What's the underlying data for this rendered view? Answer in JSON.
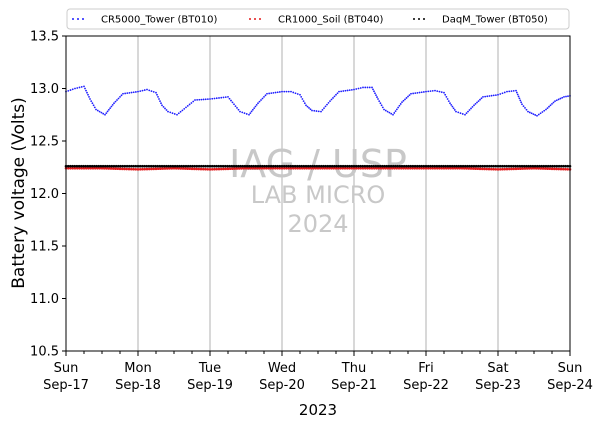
{
  "chart_data": {
    "type": "scatter",
    "xlabel": "2023",
    "ylabel": "Battery voltage (Volts)",
    "ylim": [
      10.5,
      13.5
    ],
    "xlim": [
      "2023-09-17",
      "2023-09-24"
    ],
    "y_ticks": [
      "10.5",
      "11.0",
      "11.5",
      "12.0",
      "12.5",
      "13.0",
      "13.5"
    ],
    "x_ticks": [
      {
        "day": "Sun",
        "date": "Sep-17"
      },
      {
        "day": "Mon",
        "date": "Sep-18"
      },
      {
        "day": "Tue",
        "date": "Sep-19"
      },
      {
        "day": "Wed",
        "date": "Sep-20"
      },
      {
        "day": "Thu",
        "date": "Sep-21"
      },
      {
        "day": "Fri",
        "date": "Sep-22"
      },
      {
        "day": "Sat",
        "date": "Sep-23"
      },
      {
        "day": "Sun",
        "date": "Sep-24"
      }
    ],
    "grid": "vertical",
    "legend_position": "top",
    "series": [
      {
        "name": "CR5000_Tower (BT010)",
        "color": "#1f1fff",
        "marker": "dot",
        "points": [
          [
            "2023-09-17",
            12.97
          ],
          [
            "2023-09-17 03:00",
            13.0
          ],
          [
            "2023-09-17 06:00",
            13.02
          ],
          [
            "2023-09-17 08:00",
            12.9
          ],
          [
            "2023-09-17 10:00",
            12.8
          ],
          [
            "2023-09-17 13:00",
            12.75
          ],
          [
            "2023-09-17 16:00",
            12.86
          ],
          [
            "2023-09-17 19:00",
            12.95
          ],
          [
            "2023-09-18",
            12.97
          ],
          [
            "2023-09-18 03:00",
            12.99
          ],
          [
            "2023-09-18 06:00",
            12.96
          ],
          [
            "2023-09-18 08:00",
            12.84
          ],
          [
            "2023-09-18 10:00",
            12.78
          ],
          [
            "2023-09-18 13:00",
            12.75
          ],
          [
            "2023-09-18 16:00",
            12.82
          ],
          [
            "2023-09-18 19:00",
            12.89
          ],
          [
            "2023-09-19",
            12.9
          ],
          [
            "2023-09-19 03:00",
            12.91
          ],
          [
            "2023-09-19 06:00",
            12.92
          ],
          [
            "2023-09-19 08:00",
            12.85
          ],
          [
            "2023-09-19 10:00",
            12.78
          ],
          [
            "2023-09-19 13:00",
            12.75
          ],
          [
            "2023-09-19 16:00",
            12.86
          ],
          [
            "2023-09-19 19:00",
            12.95
          ],
          [
            "2023-09-20",
            12.97
          ],
          [
            "2023-09-20 03:00",
            12.97
          ],
          [
            "2023-09-20 06:00",
            12.94
          ],
          [
            "2023-09-20 08:00",
            12.84
          ],
          [
            "2023-09-20 10:00",
            12.79
          ],
          [
            "2023-09-20 13:00",
            12.78
          ],
          [
            "2023-09-20 16:00",
            12.88
          ],
          [
            "2023-09-20 19:00",
            12.97
          ],
          [
            "2023-09-21",
            12.99
          ],
          [
            "2023-09-21 03:00",
            13.01
          ],
          [
            "2023-09-21 06:00",
            13.01
          ],
          [
            "2023-09-21 08:00",
            12.9
          ],
          [
            "2023-09-21 10:00",
            12.8
          ],
          [
            "2023-09-21 13:00",
            12.75
          ],
          [
            "2023-09-21 16:00",
            12.87
          ],
          [
            "2023-09-21 19:00",
            12.95
          ],
          [
            "2023-09-22",
            12.97
          ],
          [
            "2023-09-22 03:00",
            12.98
          ],
          [
            "2023-09-22 06:00",
            12.96
          ],
          [
            "2023-09-22 08:00",
            12.86
          ],
          [
            "2023-09-22 10:00",
            12.78
          ],
          [
            "2023-09-22 13:00",
            12.75
          ],
          [
            "2023-09-22 16:00",
            12.84
          ],
          [
            "2023-09-22 19:00",
            12.92
          ],
          [
            "2023-09-23",
            12.94
          ],
          [
            "2023-09-23 03:00",
            12.97
          ],
          [
            "2023-09-23 06:00",
            12.98
          ],
          [
            "2023-09-23 08:00",
            12.85
          ],
          [
            "2023-09-23 10:00",
            12.78
          ],
          [
            "2023-09-23 13:00",
            12.74
          ],
          [
            "2023-09-23 16:00",
            12.8
          ],
          [
            "2023-09-23 19:00",
            12.88
          ],
          [
            "2023-09-23 22:00",
            12.92
          ],
          [
            "2023-09-24",
            12.93
          ]
        ]
      },
      {
        "name": "CR1000_Soil (BT040)",
        "color": "#e31a1c",
        "marker": "dot",
        "points": [
          [
            "2023-09-17",
            12.24
          ],
          [
            "2023-09-17 12:00",
            12.24
          ],
          [
            "2023-09-18",
            12.23
          ],
          [
            "2023-09-18 12:00",
            12.24
          ],
          [
            "2023-09-19",
            12.23
          ],
          [
            "2023-09-19 12:00",
            12.24
          ],
          [
            "2023-09-20",
            12.24
          ],
          [
            "2023-09-20 12:00",
            12.24
          ],
          [
            "2023-09-21",
            12.24
          ],
          [
            "2023-09-21 12:00",
            12.24
          ],
          [
            "2023-09-22",
            12.24
          ],
          [
            "2023-09-22 12:00",
            12.24
          ],
          [
            "2023-09-23",
            12.23
          ],
          [
            "2023-09-23 12:00",
            12.24
          ],
          [
            "2023-09-24",
            12.23
          ]
        ]
      },
      {
        "name": "DaqM_Tower (BT050)",
        "color": "#000000",
        "marker": "dot",
        "points": [
          [
            "2023-09-17",
            12.26
          ],
          [
            "2023-09-18",
            12.26
          ],
          [
            "2023-09-19",
            12.26
          ],
          [
            "2023-09-20",
            12.26
          ],
          [
            "2023-09-21",
            12.26
          ],
          [
            "2023-09-22",
            12.26
          ],
          [
            "2023-09-23",
            12.26
          ],
          [
            "2023-09-24",
            12.26
          ]
        ]
      }
    ],
    "watermark": [
      "IAG / USP",
      "LAB MICRO",
      "2024"
    ]
  }
}
